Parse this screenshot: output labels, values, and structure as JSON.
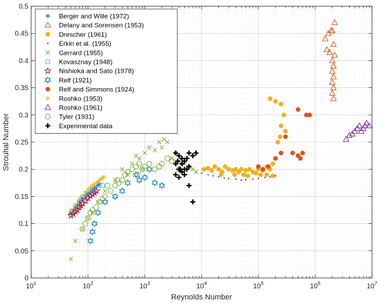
{
  "chart_data": {
    "type": "scatter",
    "title": "",
    "xlabel": "Reynolds Number",
    "ylabel": "Strouhal Number",
    "xscale": "log",
    "xlim": [
      10,
      10000000
    ],
    "ylim": [
      0,
      0.5
    ],
    "x_tick_labels": [
      {
        "value": 10,
        "base": "10",
        "exp": "1"
      },
      {
        "value": 100,
        "base": "10",
        "exp": "2"
      },
      {
        "value": 1000,
        "base": "10",
        "exp": "3"
      },
      {
        "value": 10000,
        "base": "10",
        "exp": "4"
      },
      {
        "value": 100000,
        "base": "10",
        "exp": "5"
      },
      {
        "value": 1000000,
        "base": "10",
        "exp": "6"
      },
      {
        "value": 10000000,
        "base": "10",
        "exp": "7"
      }
    ],
    "y_tick_labels": [
      "0",
      "0.05",
      "0.1",
      "0.15",
      "0.2",
      "0.25",
      "0.3",
      "0.35",
      "0.4",
      "0.45",
      "0.5"
    ],
    "y_ticks": [
      0,
      0.05,
      0.1,
      0.15,
      0.2,
      0.25,
      0.3,
      0.35,
      0.4,
      0.45,
      0.5
    ],
    "grid": true,
    "minor_grid": true,
    "legend_position": "top-left",
    "series": [
      {
        "name": "Berger and Wille (1972)",
        "marker": "asterisk",
        "color": "#0072BD",
        "points": [
          [
            50,
            0.12
          ],
          [
            55,
            0.125
          ],
          [
            60,
            0.13
          ],
          [
            65,
            0.135
          ],
          [
            70,
            0.14
          ],
          [
            75,
            0.143
          ],
          [
            80,
            0.147
          ],
          [
            90,
            0.152
          ],
          [
            100,
            0.156
          ],
          [
            110,
            0.16
          ],
          [
            120,
            0.163
          ],
          [
            130,
            0.166
          ],
          [
            140,
            0.168
          ],
          [
            150,
            0.171
          ],
          [
            160,
            0.173
          ]
        ]
      },
      {
        "name": "Delany and Sorensen (1953)",
        "marker": "triangle",
        "color": "#D95319",
        "points": [
          [
            1500000,
            0.44
          ],
          [
            1700000,
            0.45
          ],
          [
            1900000,
            0.455
          ],
          [
            2000000,
            0.455
          ],
          [
            1600000,
            0.42
          ],
          [
            1800000,
            0.415
          ],
          [
            2000000,
            0.4
          ],
          [
            2100000,
            0.39
          ],
          [
            2000000,
            0.38
          ],
          [
            2100000,
            0.37
          ],
          [
            2000000,
            0.36
          ],
          [
            2100000,
            0.35
          ],
          [
            2000000,
            0.34
          ],
          [
            2100000,
            0.33
          ],
          [
            2200000,
            0.47
          ],
          [
            2100000,
            0.43
          ],
          [
            2200000,
            0.41
          ]
        ]
      },
      {
        "name": "Drescher (1961)",
        "marker": "filled-circle",
        "color": "#EDB120",
        "points": [
          [
            11000,
            0.2
          ],
          [
            13000,
            0.202
          ],
          [
            15000,
            0.198
          ],
          [
            17000,
            0.205
          ],
          [
            20000,
            0.2
          ],
          [
            23000,
            0.195
          ],
          [
            26000,
            0.205
          ],
          [
            30000,
            0.2
          ],
          [
            35000,
            0.198
          ],
          [
            40000,
            0.2
          ],
          [
            45000,
            0.195
          ],
          [
            50000,
            0.2
          ],
          [
            55000,
            0.19
          ],
          [
            60000,
            0.198
          ],
          [
            70000,
            0.2
          ],
          [
            80000,
            0.195
          ],
          [
            90000,
            0.193
          ],
          [
            100000,
            0.2
          ],
          [
            120000,
            0.198
          ],
          [
            140000,
            0.205
          ],
          [
            160000,
            0.2
          ],
          [
            180000,
            0.21
          ],
          [
            200000,
            0.22
          ],
          [
            220000,
            0.25
          ],
          [
            240000,
            0.26
          ],
          [
            250000,
            0.28
          ],
          [
            280000,
            0.3
          ],
          [
            300000,
            0.27
          ],
          [
            160000,
            0.33
          ],
          [
            200000,
            0.325
          ],
          [
            250000,
            0.32
          ],
          [
            22000,
            0.19
          ],
          [
            38000,
            0.19
          ],
          [
            65000,
            0.188
          ],
          [
            110000,
            0.19
          ],
          [
            140000,
            0.19
          ],
          [
            180000,
            0.188
          ]
        ]
      },
      {
        "name": "Erkin et al. (1955)",
        "marker": "dot",
        "color": "#7E2F8E",
        "points": [
          [
            8000,
            0.195
          ],
          [
            10000,
            0.193
          ],
          [
            13000,
            0.19
          ],
          [
            16000,
            0.188
          ],
          [
            20000,
            0.186
          ],
          [
            25000,
            0.184
          ],
          [
            30000,
            0.183
          ],
          [
            40000,
            0.182
          ],
          [
            50000,
            0.18
          ],
          [
            60000,
            0.181
          ],
          [
            80000,
            0.182
          ],
          [
            100000,
            0.183
          ],
          [
            130000,
            0.185
          ],
          [
            160000,
            0.186
          ],
          [
            200000,
            0.188
          ]
        ]
      },
      {
        "name": "Gerrard (1955)",
        "marker": "x",
        "color": "#77AC30",
        "points": [
          [
            50,
            0.035
          ],
          [
            60,
            0.068
          ],
          [
            80,
            0.09
          ],
          [
            100,
            0.11
          ],
          [
            120,
            0.12
          ],
          [
            150,
            0.14
          ],
          [
            200,
            0.16
          ],
          [
            300,
            0.18
          ],
          [
            400,
            0.2
          ],
          [
            500,
            0.19
          ],
          [
            600,
            0.21
          ],
          [
            800,
            0.22
          ],
          [
            1000,
            0.23
          ],
          [
            1200,
            0.24
          ],
          [
            1500,
            0.235
          ],
          [
            2000,
            0.24
          ],
          [
            2500,
            0.25
          ],
          [
            3000,
            0.22
          ],
          [
            3500,
            0.23
          ],
          [
            4000,
            0.215
          ],
          [
            5000,
            0.21
          ],
          [
            6000,
            0.205
          ],
          [
            7000,
            0.2
          ],
          [
            8000,
            0.195
          ],
          [
            2200,
            0.255
          ],
          [
            1800,
            0.25
          ],
          [
            700,
            0.225
          ],
          [
            900,
            0.2
          ]
        ]
      },
      {
        "name": "Kovasznay (1948)",
        "marker": "square",
        "color": "#4DBEEE",
        "points": [
          [
            50,
            0.12
          ],
          [
            60,
            0.13
          ],
          [
            70,
            0.14
          ],
          [
            80,
            0.148
          ],
          [
            100,
            0.155
          ],
          [
            120,
            0.16
          ],
          [
            150,
            0.165
          ],
          [
            180,
            0.17
          ]
        ]
      },
      {
        "name": "Nishioka and Sato (1978)",
        "marker": "pentagram",
        "color": "#A2142F",
        "points": [
          [
            50,
            0.115
          ],
          [
            55,
            0.118
          ],
          [
            60,
            0.122
          ],
          [
            65,
            0.125
          ],
          [
            70,
            0.13
          ],
          [
            75,
            0.133
          ],
          [
            80,
            0.137
          ],
          [
            90,
            0.142
          ],
          [
            100,
            0.147
          ],
          [
            110,
            0.151
          ],
          [
            120,
            0.154
          ],
          [
            130,
            0.157
          ],
          [
            140,
            0.16
          ]
        ]
      },
      {
        "name": "Relf (1921)",
        "marker": "hexagram",
        "color": "#0072BD",
        "points": [
          [
            110,
            0.068
          ],
          [
            120,
            0.085
          ],
          [
            130,
            0.1
          ],
          [
            150,
            0.12
          ],
          [
            200,
            0.14
          ],
          [
            300,
            0.15
          ],
          [
            400,
            0.16
          ],
          [
            500,
            0.175
          ],
          [
            700,
            0.19
          ],
          [
            1000,
            0.185
          ],
          [
            1500,
            0.175
          ],
          [
            2000,
            0.17
          ],
          [
            1200,
            0.2
          ],
          [
            800,
            0.18
          ]
        ]
      },
      {
        "name": "Relf and Simmons (1924)",
        "marker": "filled-circle",
        "color": "#D95319",
        "points": [
          [
            100000,
            0.205
          ],
          [
            120000,
            0.2
          ],
          [
            150000,
            0.205
          ],
          [
            200000,
            0.22
          ],
          [
            250000,
            0.23
          ],
          [
            300000,
            0.26
          ],
          [
            400000,
            0.23
          ],
          [
            500000,
            0.225
          ],
          [
            550000,
            0.22
          ],
          [
            600000,
            0.23
          ],
          [
            700000,
            0.3
          ],
          [
            800000,
            0.3
          ],
          [
            500000,
            0.31
          ]
        ]
      },
      {
        "name": "Roshko (1953)",
        "marker": "asterisk",
        "color": "#EDB120",
        "points": [
          [
            50,
            0.125
          ],
          [
            60,
            0.135
          ],
          [
            70,
            0.145
          ],
          [
            80,
            0.152
          ],
          [
            90,
            0.158
          ],
          [
            100,
            0.163
          ],
          [
            110,
            0.167
          ],
          [
            120,
            0.17
          ],
          [
            130,
            0.173
          ],
          [
            140,
            0.175
          ],
          [
            150,
            0.177
          ],
          [
            160,
            0.18
          ],
          [
            170,
            0.182
          ],
          [
            180,
            0.184
          ],
          [
            190,
            0.186
          ]
        ]
      },
      {
        "name": "Roshko (1961)",
        "marker": "triangle",
        "color": "#7E2F8E",
        "points": [
          [
            3500000,
            0.255
          ],
          [
            4000000,
            0.262
          ],
          [
            4500000,
            0.265
          ],
          [
            5000000,
            0.27
          ],
          [
            5500000,
            0.275
          ],
          [
            6000000,
            0.28
          ],
          [
            6500000,
            0.27
          ],
          [
            7000000,
            0.275
          ],
          [
            7500000,
            0.28
          ],
          [
            8000000,
            0.285
          ],
          [
            9000000,
            0.28
          ]
        ]
      },
      {
        "name": "Tyler (1931)",
        "marker": "open-circle",
        "color": "#77AC30",
        "points": [
          [
            80,
            0.09
          ],
          [
            90,
            0.1
          ],
          [
            100,
            0.11
          ],
          [
            110,
            0.12
          ],
          [
            120,
            0.125
          ],
          [
            140,
            0.13
          ],
          [
            160,
            0.14
          ],
          [
            180,
            0.145
          ],
          [
            200,
            0.15
          ],
          [
            250,
            0.16
          ],
          [
            300,
            0.17
          ],
          [
            350,
            0.175
          ],
          [
            400,
            0.18
          ],
          [
            450,
            0.19
          ],
          [
            500,
            0.195
          ],
          [
            600,
            0.2
          ],
          [
            700,
            0.205
          ],
          [
            800,
            0.21
          ],
          [
            900,
            0.2
          ],
          [
            1000,
            0.205
          ],
          [
            1200,
            0.21
          ],
          [
            1500,
            0.2
          ],
          [
            1800,
            0.205
          ],
          [
            2000,
            0.21
          ],
          [
            2500,
            0.22
          ],
          [
            3000,
            0.215
          ],
          [
            4000,
            0.2
          ],
          [
            220,
            0.17
          ],
          [
            330,
            0.18
          ],
          [
            750,
            0.19
          ]
        ]
      },
      {
        "name": "Experimental data",
        "marker": "plus",
        "color": "#000000",
        "points": [
          [
            3500,
            0.23
          ],
          [
            4000,
            0.225
          ],
          [
            4500,
            0.22
          ],
          [
            5000,
            0.215
          ],
          [
            5500,
            0.22
          ],
          [
            6000,
            0.23
          ],
          [
            7000,
            0.225
          ],
          [
            8000,
            0.23
          ],
          [
            3500,
            0.21
          ],
          [
            4000,
            0.2
          ],
          [
            4500,
            0.195
          ],
          [
            5000,
            0.19
          ],
          [
            5500,
            0.2
          ],
          [
            6000,
            0.205
          ],
          [
            7000,
            0.14
          ],
          [
            6000,
            0.17
          ],
          [
            3500,
            0.19
          ],
          [
            4000,
            0.185
          ],
          [
            4500,
            0.21
          ],
          [
            5000,
            0.2
          ],
          [
            3800,
            0.215
          ],
          [
            4200,
            0.2
          ]
        ]
      }
    ]
  }
}
